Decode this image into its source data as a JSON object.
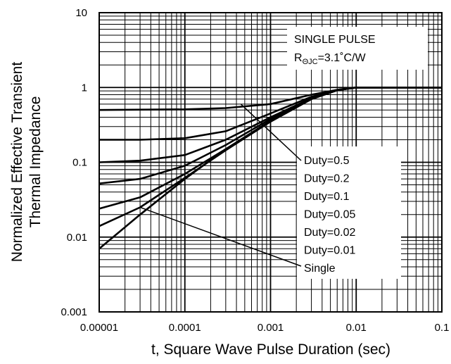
{
  "chart_data": {
    "type": "line",
    "xlabel": "t, Square Wave Pulse Duration (sec)",
    "ylabel": [
      "Normalized Effective Transient",
      "Thermal Impedance"
    ],
    "x_scale": "log",
    "y_scale": "log",
    "xlim": [
      1e-05,
      0.1
    ],
    "ylim": [
      0.001,
      10
    ],
    "x_ticks": [
      "0.00001",
      "0.0001",
      "0.001",
      "0.01",
      "0.1"
    ],
    "y_ticks": [
      "0.001",
      "0.01",
      "0.1",
      "1",
      "10"
    ],
    "grid": true,
    "annotation": {
      "line1": "SINGLE PULSE",
      "line2_prefix": "R",
      "line2_sub": "ΘJC",
      "line2_suffix": "=3.1˚C/W"
    },
    "legend_labels": [
      "Duty=0.5",
      "Duty=0.2",
      "Duty=0.1",
      "Duty=0.05",
      "Duty=0.02",
      "Duty=0.01",
      "Single"
    ],
    "series": [
      {
        "name": "Duty=0.5",
        "x": [
          1e-05,
          0.0001,
          0.0003,
          0.001,
          0.003,
          0.006,
          0.01,
          0.1
        ],
        "y": [
          0.5,
          0.51,
          0.53,
          0.6,
          0.8,
          0.93,
          1.0,
          1.0
        ]
      },
      {
        "name": "Duty=0.2",
        "x": [
          1e-05,
          3e-05,
          0.0001,
          0.0003,
          0.001,
          0.003,
          0.006,
          0.01,
          0.1
        ],
        "y": [
          0.2,
          0.2,
          0.21,
          0.26,
          0.45,
          0.75,
          0.93,
          1.0,
          1.0
        ]
      },
      {
        "name": "Duty=0.1",
        "x": [
          1e-05,
          3e-05,
          0.0001,
          0.0003,
          0.001,
          0.003,
          0.006,
          0.01,
          0.1
        ],
        "y": [
          0.1,
          0.105,
          0.125,
          0.2,
          0.4,
          0.72,
          0.92,
          1.0,
          1.0
        ]
      },
      {
        "name": "Duty=0.05",
        "x": [
          1e-05,
          3e-05,
          0.0001,
          0.0003,
          0.001,
          0.003,
          0.006,
          0.01,
          0.1
        ],
        "y": [
          0.052,
          0.06,
          0.09,
          0.17,
          0.38,
          0.7,
          0.92,
          1.0,
          1.0
        ]
      },
      {
        "name": "Duty=0.02",
        "x": [
          1e-05,
          3e-05,
          0.0001,
          0.0003,
          0.001,
          0.003,
          0.006,
          0.01,
          0.1
        ],
        "y": [
          0.024,
          0.034,
          0.07,
          0.15,
          0.36,
          0.7,
          0.92,
          1.0,
          1.0
        ]
      },
      {
        "name": "Duty=0.01",
        "x": [
          1e-05,
          3e-05,
          0.0001,
          0.0003,
          0.001,
          0.003,
          0.006,
          0.01,
          0.1
        ],
        "y": [
          0.014,
          0.025,
          0.062,
          0.145,
          0.35,
          0.7,
          0.92,
          1.0,
          1.0
        ]
      },
      {
        "name": "Single",
        "x": [
          1e-05,
          3e-05,
          0.0001,
          0.0003,
          0.001,
          0.003,
          0.006,
          0.01,
          0.1
        ],
        "y": [
          0.007,
          0.02,
          0.06,
          0.15,
          0.35,
          0.7,
          0.92,
          1.0,
          1.0
        ]
      }
    ],
    "callout_targets": [
      {
        "label": "Duty=0.5",
        "x": 0.00045,
        "y": 0.6
      },
      {
        "label": "Single",
        "x": 3e-05,
        "y": 0.025
      }
    ]
  }
}
